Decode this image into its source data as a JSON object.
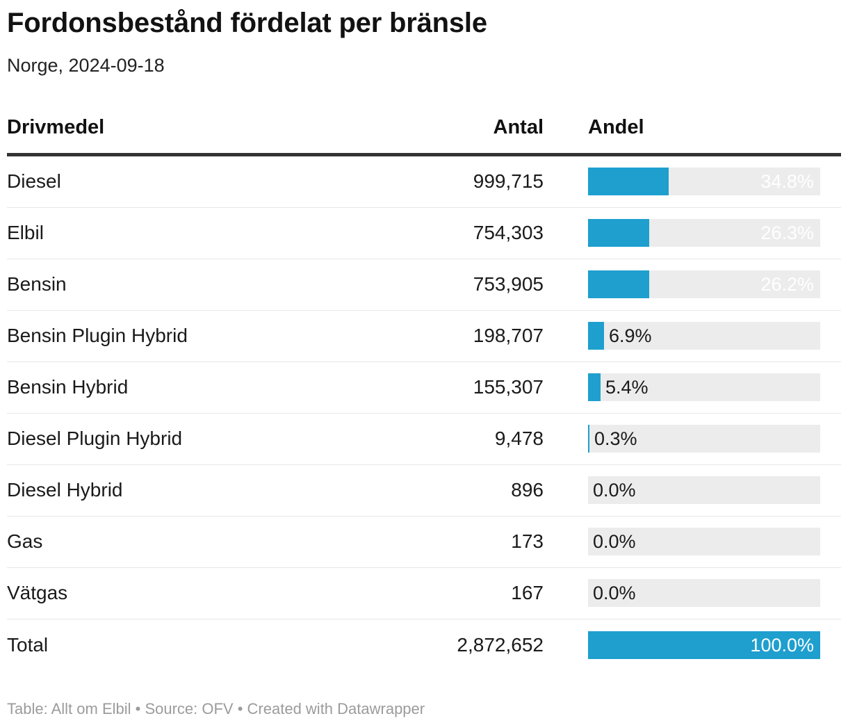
{
  "title": "Fordonsbestånd fördelat per bränsle",
  "subtitle": "Norge, 2024-09-18",
  "table": {
    "columns": {
      "fuel": "Drivmedel",
      "count": "Antal",
      "share": "Andel"
    },
    "rows": [
      {
        "fuel": "Diesel",
        "count": "999,715",
        "share": "34.8%",
        "pct": 34.8
      },
      {
        "fuel": "Elbil",
        "count": "754,303",
        "share": "26.3%",
        "pct": 26.3
      },
      {
        "fuel": "Bensin",
        "count": "753,905",
        "share": "26.2%",
        "pct": 26.2
      },
      {
        "fuel": "Bensin Plugin Hybrid",
        "count": "198,707",
        "share": "6.9%",
        "pct": 6.9
      },
      {
        "fuel": "Bensin Hybrid",
        "count": "155,307",
        "share": "5.4%",
        "pct": 5.4
      },
      {
        "fuel": "Diesel Plugin Hybrid",
        "count": "9,478",
        "share": "0.3%",
        "pct": 0.3
      },
      {
        "fuel": "Diesel Hybrid",
        "count": "896",
        "share": "0.0%",
        "pct": 0.0
      },
      {
        "fuel": "Gas",
        "count": "173",
        "share": "0.0%",
        "pct": 0.0
      },
      {
        "fuel": "Vätgas",
        "count": "167",
        "share": "0.0%",
        "pct": 0.0
      },
      {
        "fuel": "Total",
        "count": "2,872,652",
        "share": "100.0%",
        "pct": 100.0
      }
    ]
  },
  "footer": "Table: Allt om Elbil • Source: OFV • Created with Datawrapper",
  "colors": {
    "bar_fill": "#1e9fce",
    "bar_track": "#ececec",
    "header_rule": "#333333",
    "row_separator": "#e7e7e7",
    "footer_text": "#9b9b9b"
  },
  "chart_data": {
    "type": "table",
    "title": "Fordonsbestånd fördelat per bränsle",
    "subtitle": "Norge, 2024-09-18",
    "columns": [
      "Drivmedel",
      "Antal",
      "Andel"
    ],
    "categories": [
      "Diesel",
      "Elbil",
      "Bensin",
      "Bensin Plugin Hybrid",
      "Bensin Hybrid",
      "Diesel Plugin Hybrid",
      "Diesel Hybrid",
      "Gas",
      "Vätgas",
      "Total"
    ],
    "series": [
      {
        "name": "Antal",
        "values": [
          999715,
          754303,
          753905,
          198707,
          155307,
          9478,
          896,
          173,
          167,
          2872652
        ]
      },
      {
        "name": "Andel (%)",
        "values": [
          34.8,
          26.3,
          26.2,
          6.9,
          5.4,
          0.3,
          0.0,
          0.0,
          0.0,
          100.0
        ]
      }
    ],
    "bar_axis_range": [
      0,
      100
    ],
    "legend": "none",
    "grid": "off",
    "footer": "Table: Allt om Elbil • Source: OFV • Created with Datawrapper"
  }
}
